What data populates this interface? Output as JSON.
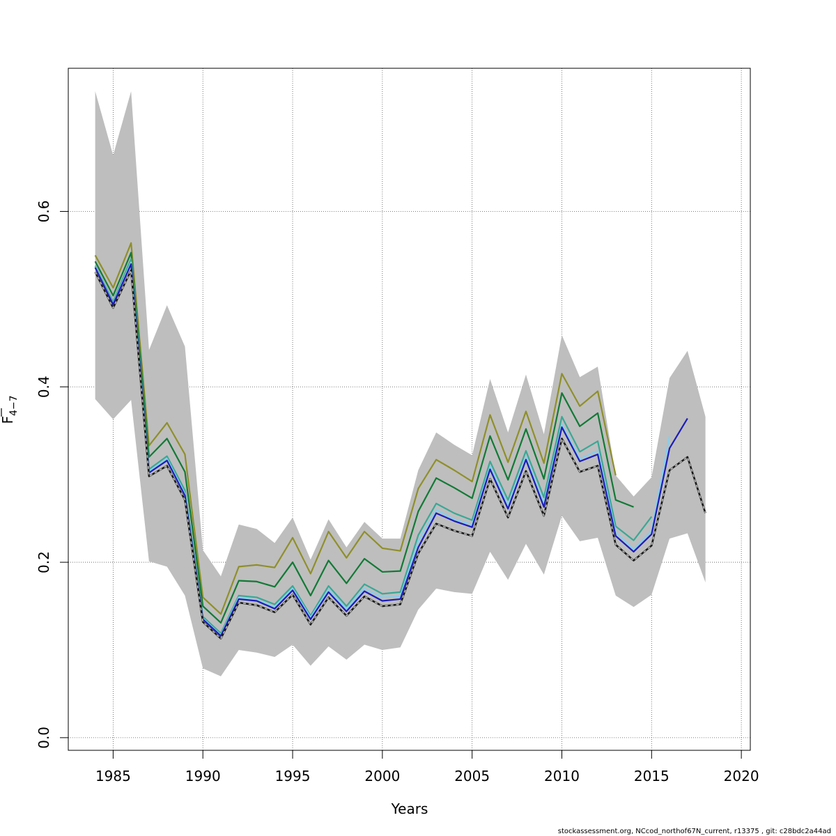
{
  "chart_data": {
    "type": "line",
    "xlabel": "Years",
    "ylabel_main": "F",
    "ylabel_sub": "4−7",
    "xlim": [
      1982.5,
      2020.5
    ],
    "ylim": [
      -0.0144,
      0.7632
    ],
    "x_ticks": [
      1985,
      1990,
      1995,
      2000,
      2005,
      2010,
      2015,
      2020
    ],
    "x_tick_labels": [
      "1985",
      "1990",
      "1995",
      "2000",
      "2005",
      "2010",
      "2015",
      "2020"
    ],
    "y_ticks": [
      0.0,
      0.2,
      0.4,
      0.6
    ],
    "y_tick_labels": [
      "0.0",
      "0.2",
      "0.4",
      "0.6"
    ],
    "grid": true,
    "footer": "stockassessment.org, NCcod_northof67N_current, r13375 , git: c28bdc2a44ad",
    "band": {
      "x": [
        1984,
        1985,
        1986,
        1987,
        1988,
        1989,
        1990,
        1991,
        1992,
        1993,
        1994,
        1995,
        1996,
        1997,
        1998,
        1999,
        2000,
        2001,
        2002,
        2003,
        2004,
        2005,
        2006,
        2007,
        2008,
        2009,
        2010,
        2011,
        2012,
        2013,
        2014,
        2015,
        2016,
        2017,
        2018
      ],
      "upper": [
        0.737,
        0.664,
        0.737,
        0.442,
        0.493,
        0.446,
        0.214,
        0.184,
        0.243,
        0.238,
        0.222,
        0.251,
        0.203,
        0.249,
        0.217,
        0.246,
        0.227,
        0.227,
        0.305,
        0.348,
        0.334,
        0.322,
        0.409,
        0.348,
        0.414,
        0.346,
        0.459,
        0.411,
        0.423,
        0.299,
        0.275,
        0.297,
        0.41,
        0.441,
        0.366
      ],
      "lower": [
        0.386,
        0.363,
        0.385,
        0.201,
        0.195,
        0.162,
        0.079,
        0.07,
        0.1,
        0.097,
        0.092,
        0.106,
        0.082,
        0.104,
        0.089,
        0.106,
        0.1,
        0.103,
        0.146,
        0.17,
        0.166,
        0.164,
        0.212,
        0.18,
        0.221,
        0.186,
        0.253,
        0.224,
        0.228,
        0.162,
        0.149,
        0.163,
        0.227,
        0.233,
        0.177
      ]
    },
    "series": [
      {
        "color": "#8f8f2a",
        "width": 2.2,
        "dash": "",
        "x": [
          1984,
          1985,
          1986,
          1987,
          1988,
          1989,
          1990,
          1991,
          1992,
          1993,
          1994,
          1995,
          1996,
          1997,
          1998,
          1999,
          2000,
          2001,
          2002,
          2003,
          2004,
          2005,
          2006,
          2007,
          2008,
          2009,
          2010,
          2011,
          2012,
          2013
        ],
        "y": [
          0.55,
          0.513,
          0.564,
          0.333,
          0.359,
          0.323,
          0.16,
          0.141,
          0.195,
          0.197,
          0.194,
          0.228,
          0.187,
          0.235,
          0.205,
          0.235,
          0.216,
          0.213,
          0.284,
          0.317,
          0.305,
          0.292,
          0.368,
          0.314,
          0.372,
          0.313,
          0.415,
          0.378,
          0.395,
          0.299
        ]
      },
      {
        "color": "#117a35",
        "width": 2.2,
        "dash": "",
        "x": [
          1984,
          1985,
          1986,
          1987,
          1988,
          1989,
          1990,
          1991,
          1992,
          1993,
          1994,
          1995,
          1996,
          1997,
          1998,
          1999,
          2000,
          2001,
          2002,
          2003,
          2004,
          2005,
          2006,
          2007,
          2008,
          2009,
          2010,
          2011,
          2012,
          2013,
          2014
        ],
        "y": [
          0.543,
          0.504,
          0.553,
          0.32,
          0.341,
          0.303,
          0.15,
          0.131,
          0.179,
          0.178,
          0.172,
          0.2,
          0.162,
          0.202,
          0.176,
          0.204,
          0.189,
          0.19,
          0.258,
          0.296,
          0.285,
          0.273,
          0.344,
          0.294,
          0.352,
          0.295,
          0.393,
          0.355,
          0.37,
          0.271,
          0.263
        ]
      },
      {
        "color": "#3aa895",
        "width": 2.2,
        "dash": "",
        "x": [
          1984,
          1985,
          1986,
          1987,
          1988,
          1989,
          1990,
          1991,
          1992,
          1993,
          1994,
          1995,
          1996,
          1997,
          1998,
          1999,
          2000,
          2001,
          2002,
          2003,
          2004,
          2005,
          2006,
          2007,
          2008,
          2009,
          2010,
          2011,
          2012,
          2013,
          2014,
          2015
        ],
        "y": [
          0.538,
          0.497,
          0.546,
          0.306,
          0.321,
          0.282,
          0.138,
          0.119,
          0.162,
          0.16,
          0.152,
          0.173,
          0.139,
          0.173,
          0.15,
          0.175,
          0.164,
          0.166,
          0.231,
          0.267,
          0.256,
          0.248,
          0.315,
          0.271,
          0.327,
          0.274,
          0.366,
          0.326,
          0.338,
          0.241,
          0.225,
          0.252
        ]
      },
      {
        "color": "#87ceeb",
        "width": 2.2,
        "dash": "",
        "x": [
          1984,
          1985,
          1986,
          1987,
          1988,
          1989,
          1990,
          1991,
          1992,
          1993,
          1994,
          1995,
          1996,
          1997,
          1998,
          1999,
          2000,
          2001,
          2002,
          2003,
          2004,
          2005,
          2006,
          2007,
          2008,
          2009,
          2010,
          2011,
          2012,
          2013,
          2014,
          2015,
          2016
        ],
        "y": [
          0.537,
          0.495,
          0.542,
          0.304,
          0.318,
          0.278,
          0.136,
          0.117,
          0.16,
          0.157,
          0.149,
          0.17,
          0.137,
          0.169,
          0.147,
          0.17,
          0.16,
          0.161,
          0.224,
          0.26,
          0.249,
          0.243,
          0.309,
          0.265,
          0.32,
          0.267,
          0.357,
          0.318,
          0.327,
          0.234,
          0.215,
          0.236,
          0.344
        ]
      },
      {
        "color": "#1c1cb8",
        "width": 2.2,
        "dash": "",
        "x": [
          1984,
          1985,
          1986,
          1987,
          1988,
          1989,
          1990,
          1991,
          1992,
          1993,
          1994,
          1995,
          1996,
          1997,
          1998,
          1999,
          2000,
          2001,
          2002,
          2003,
          2004,
          2005,
          2006,
          2007,
          2008,
          2009,
          2010,
          2011,
          2012,
          2013,
          2014,
          2015,
          2016,
          2017
        ],
        "y": [
          0.536,
          0.494,
          0.54,
          0.302,
          0.316,
          0.276,
          0.135,
          0.116,
          0.158,
          0.156,
          0.147,
          0.168,
          0.135,
          0.166,
          0.144,
          0.167,
          0.156,
          0.158,
          0.217,
          0.256,
          0.247,
          0.24,
          0.306,
          0.261,
          0.317,
          0.263,
          0.354,
          0.315,
          0.323,
          0.23,
          0.212,
          0.232,
          0.33,
          0.364
        ]
      },
      {
        "color": "#1a1a1a",
        "width": 2.6,
        "dash": "",
        "x": [
          1984,
          1985,
          1986,
          1987,
          1988,
          1989,
          1990,
          1991,
          1992,
          1993,
          1994,
          1995,
          1996,
          1997,
          1998,
          1999,
          2000,
          2001,
          2002,
          2003,
          2004,
          2005,
          2006,
          2007,
          2008,
          2009,
          2010,
          2011,
          2012,
          2013,
          2014,
          2015,
          2016,
          2017,
          2018
        ],
        "y": [
          0.531,
          0.49,
          0.533,
          0.298,
          0.31,
          0.271,
          0.132,
          0.113,
          0.154,
          0.151,
          0.143,
          0.163,
          0.129,
          0.16,
          0.139,
          0.161,
          0.15,
          0.152,
          0.21,
          0.244,
          0.236,
          0.23,
          0.295,
          0.251,
          0.304,
          0.253,
          0.341,
          0.303,
          0.31,
          0.22,
          0.202,
          0.219,
          0.305,
          0.32,
          0.256
        ]
      },
      {
        "color": "#bdbdbd",
        "width": 1.6,
        "dash": "4,4",
        "x": [
          1984,
          1985,
          1986,
          1987,
          1988,
          1989,
          1990,
          1991,
          1992,
          1993,
          1994,
          1995,
          1996,
          1997,
          1998,
          1999,
          2000,
          2001,
          2002,
          2003,
          2004,
          2005,
          2006,
          2007,
          2008,
          2009,
          2010,
          2011,
          2012,
          2013,
          2014,
          2015,
          2016,
          2017,
          2018
        ],
        "y": [
          0.531,
          0.49,
          0.533,
          0.298,
          0.31,
          0.271,
          0.132,
          0.113,
          0.154,
          0.151,
          0.143,
          0.163,
          0.129,
          0.16,
          0.139,
          0.161,
          0.15,
          0.152,
          0.21,
          0.244,
          0.236,
          0.23,
          0.295,
          0.251,
          0.304,
          0.253,
          0.341,
          0.303,
          0.31,
          0.22,
          0.202,
          0.219,
          0.305,
          0.32,
          0.256
        ]
      }
    ]
  }
}
